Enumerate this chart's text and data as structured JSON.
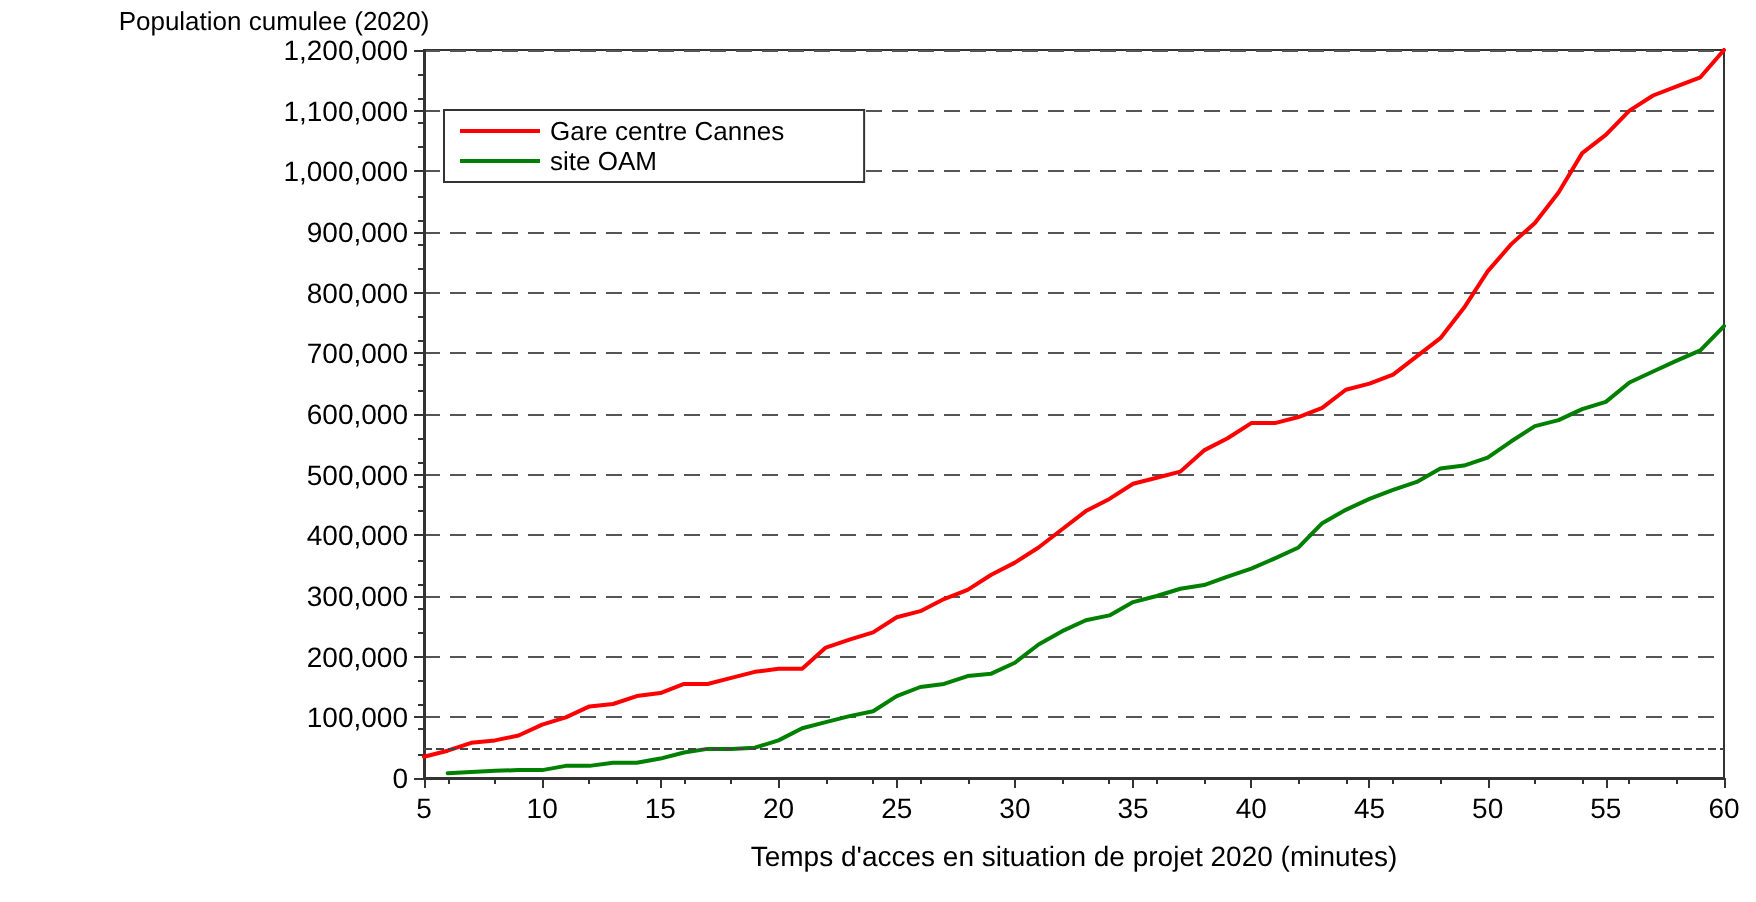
{
  "chart_data": {
    "type": "line",
    "xlabel": "Temps d'acces en situation de projet 2020 (minutes)",
    "ylabel": "Population cumulee (2020)",
    "xlim": [
      5,
      60
    ],
    "xticks": [
      5,
      10,
      15,
      20,
      25,
      30,
      35,
      40,
      45,
      50,
      55,
      60
    ],
    "ylim": [
      0,
      1200000
    ],
    "yticks": [
      0,
      {
        "value": 100000,
        "label": "100,000"
      },
      {
        "value": 200000,
        "label": "200,000"
      },
      {
        "value": 300000,
        "label": "300,000"
      },
      {
        "value": 400000,
        "label": "400,000"
      },
      {
        "value": 500000,
        "label": "500,000"
      },
      {
        "value": 600000,
        "label": "600,000"
      },
      {
        "value": 700000,
        "label": "700,000"
      },
      {
        "value": 800000,
        "label": "800,000"
      },
      {
        "value": 900000,
        "label": "900,000"
      },
      {
        "value": 1000000,
        "label": "1,000,000"
      },
      {
        "value": 1100000,
        "label": "1,100,000"
      },
      {
        "value": 1200000,
        "label": "1,200,000"
      }
    ],
    "grid": "y",
    "legend": "top left",
    "line_style": "solid",
    "marker": "none",
    "ref_lines": [
      {
        "axis": "y",
        "value": 50000,
        "label": null
      }
    ],
    "series": [
      {
        "name": "Gare centre Cannes",
        "color": "#ff0000",
        "x": [
          5,
          6,
          7,
          8,
          9,
          10,
          11,
          12,
          13,
          14,
          15,
          16,
          17,
          18,
          19,
          20,
          21,
          22,
          23,
          24,
          25,
          26,
          27,
          28,
          29,
          30,
          31,
          32,
          33,
          34,
          35,
          36,
          37,
          38,
          39,
          40,
          41,
          42,
          43,
          44,
          45,
          46,
          47,
          48,
          49,
          50,
          51,
          52,
          53,
          54,
          55,
          56,
          57,
          58,
          59,
          60
        ],
        "values": [
          35000,
          45000,
          58000,
          62000,
          70000,
          88000,
          100000,
          118000,
          122000,
          135000,
          140000,
          155000,
          155000,
          165000,
          175000,
          180000,
          180000,
          215000,
          228000,
          240000,
          265000,
          275000,
          295000,
          310000,
          335000,
          355000,
          380000,
          410000,
          440000,
          460000,
          485000,
          495000,
          505000,
          540000,
          560000,
          585000,
          585000,
          595000,
          610000,
          640000,
          650000,
          665000,
          695000,
          725000,
          775000,
          835000,
          880000,
          915000,
          965000,
          1030000,
          1060000,
          1100000,
          1125000,
          1140000,
          1155000,
          1200000
        ]
      },
      {
        "name": "site OAM",
        "color": "#008000",
        "x": [
          6,
          7,
          8,
          9,
          10,
          11,
          12,
          13,
          14,
          15,
          16,
          17,
          18,
          19,
          20,
          21,
          22,
          23,
          24,
          25,
          26,
          27,
          28,
          29,
          30,
          31,
          32,
          33,
          34,
          35,
          36,
          37,
          38,
          39,
          40,
          41,
          42,
          43,
          44,
          45,
          46,
          47,
          48,
          49,
          50,
          51,
          52,
          53,
          54,
          55,
          56,
          57,
          58,
          59,
          60
        ],
        "values": [
          8000,
          10000,
          12000,
          13000,
          13000,
          20000,
          20000,
          25000,
          25000,
          32000,
          42000,
          48000,
          48000,
          50000,
          62000,
          82000,
          92000,
          102000,
          110000,
          135000,
          150000,
          155000,
          168000,
          172000,
          190000,
          220000,
          242000,
          260000,
          268000,
          290000,
          300000,
          312000,
          318000,
          332000,
          345000,
          362000,
          380000,
          420000,
          442000,
          460000,
          475000,
          488000,
          510000,
          515000,
          528000,
          555000,
          580000,
          590000,
          608000,
          620000,
          652000,
          670000,
          688000,
          705000,
          745000
        ]
      }
    ]
  }
}
